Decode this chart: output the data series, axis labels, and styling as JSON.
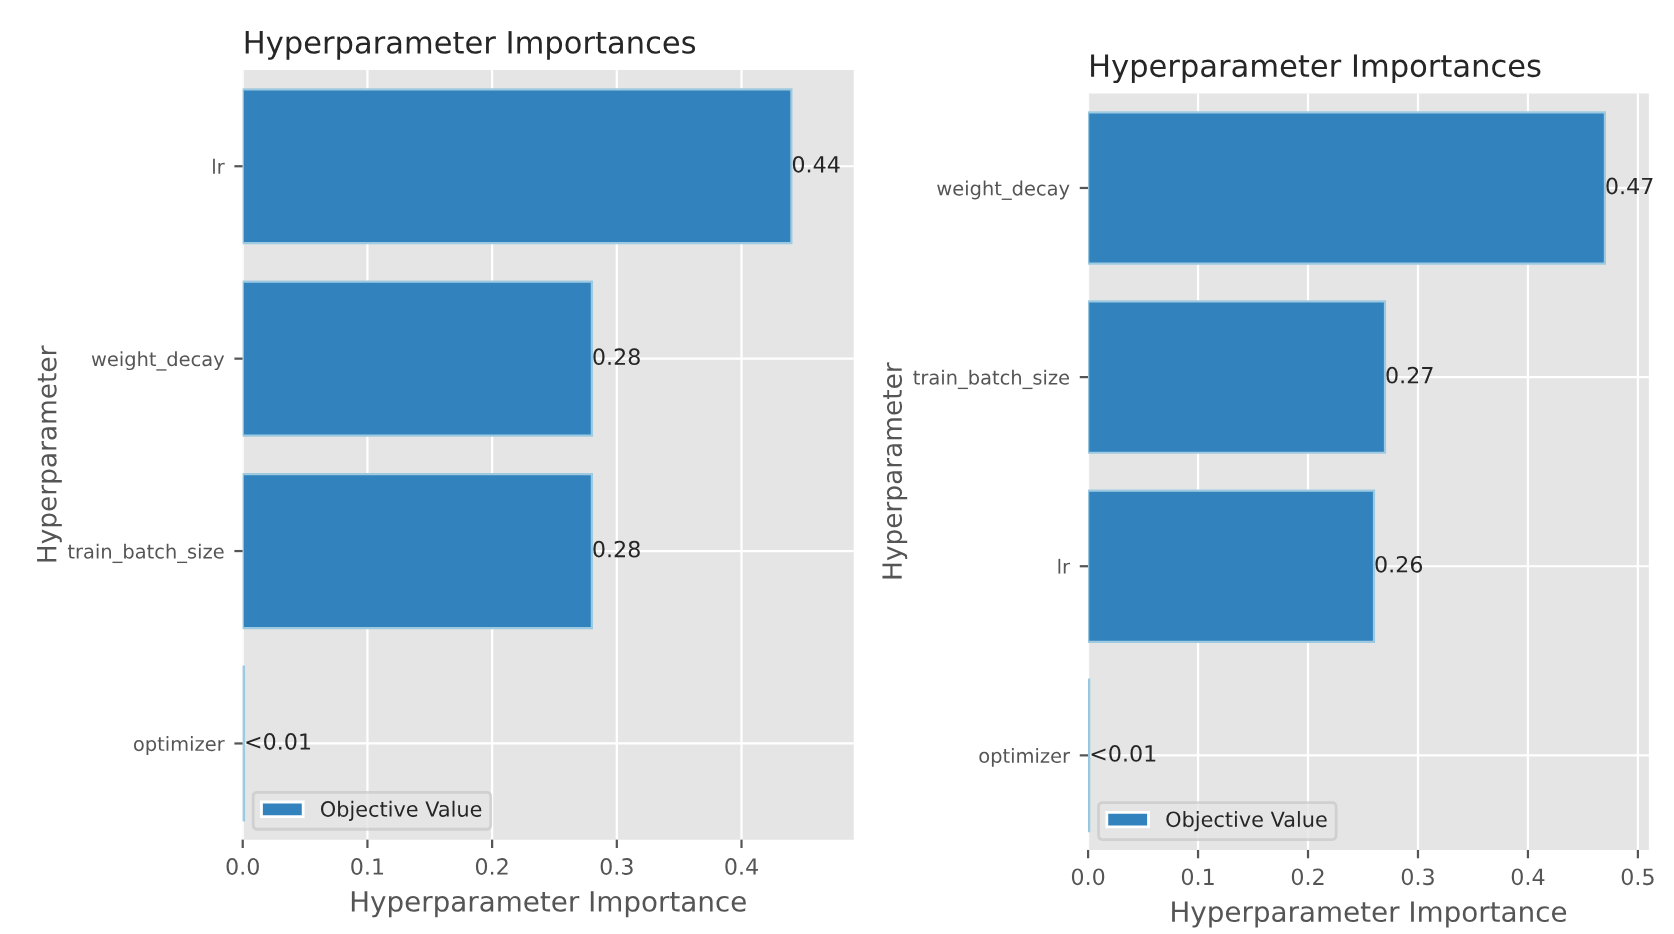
{
  "chart_data": [
    {
      "type": "bar",
      "orientation": "horizontal",
      "title": "Hyperparameter Importances",
      "xlabel": "Hyperparameter Importance",
      "ylabel": "Hyperparameter",
      "categories": [
        "lr",
        "weight_decay",
        "train_batch_size",
        "optimizer"
      ],
      "series": [
        {
          "name": "Objective Value",
          "color": "#3182bd",
          "values": [
            0.44,
            0.28,
            0.28,
            0.001
          ],
          "value_labels": [
            "0.44",
            "0.28",
            "0.28",
            "<0.01"
          ]
        }
      ],
      "xlim": [
        0,
        0.49
      ],
      "xticks": [
        {
          "value": 0,
          "label": "0.0"
        },
        0.1,
        0.2,
        0.3,
        0.4
      ],
      "grid": true,
      "legend": "bottom left"
    },
    {
      "type": "bar",
      "orientation": "horizontal",
      "title": "Hyperparameter Importances",
      "xlabel": "Hyperparameter Importance",
      "ylabel": "Hyperparameter",
      "categories": [
        "weight_decay",
        "train_batch_size",
        "lr",
        "optimizer"
      ],
      "series": [
        {
          "name": "Objective Value",
          "color": "#3182bd",
          "values": [
            0.47,
            0.27,
            0.26,
            0.001
          ],
          "value_labels": [
            "0.47",
            "0.27",
            "0.26",
            "<0.01"
          ]
        }
      ],
      "xlim": [
        0,
        0.51
      ],
      "xticks": [
        {
          "value": 0,
          "label": "0.0"
        },
        0.1,
        0.2,
        0.3,
        0.4,
        0.5
      ],
      "grid": true,
      "legend": "bottom left"
    }
  ]
}
